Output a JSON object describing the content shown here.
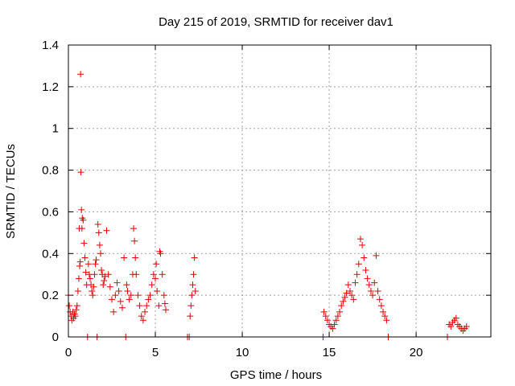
{
  "chart_data": {
    "type": "scatter",
    "title": "Day 215 of 2019, SRMTID for receiver dav1",
    "xlabel": "GPS time / hours",
    "ylabel": "SRMTID / TECUs",
    "xlim": [
      0,
      24.3
    ],
    "ylim": [
      0,
      1.4
    ],
    "grid": true,
    "x_ticks": [
      0,
      5,
      10,
      15,
      20
    ],
    "x_tick_labels": [
      "0",
      "5",
      "10",
      "15",
      "20"
    ],
    "y_ticks": [
      0,
      0.2,
      0.4,
      0.6,
      0.8,
      1.0,
      1.2,
      1.4
    ],
    "y_tick_labels": [
      "0",
      "0.2",
      "0.4",
      "0.6",
      "0.8",
      "1",
      "1.2",
      "1.4"
    ],
    "marker": "+",
    "series": [
      {
        "name": "SRMTID",
        "color": "#e00000",
        "points": [
          [
            0.0,
            0.2
          ],
          [
            0.05,
            0.15
          ],
          [
            0.1,
            0.12
          ],
          [
            0.15,
            0.1
          ],
          [
            0.2,
            0.08
          ],
          [
            0.25,
            0.12
          ],
          [
            0.3,
            0.09
          ],
          [
            0.35,
            0.11
          ],
          [
            0.4,
            0.1
          ],
          [
            0.45,
            0.13
          ],
          [
            0.5,
            0.15
          ],
          [
            0.55,
            0.22
          ],
          [
            0.6,
            0.28
          ],
          [
            0.62,
            0.52
          ],
          [
            0.65,
            0.34
          ],
          [
            0.68,
            0.36
          ],
          [
            0.7,
            1.26
          ],
          [
            0.72,
            0.79
          ],
          [
            0.75,
            0.61
          ],
          [
            0.78,
            0.52
          ],
          [
            0.8,
            0.57
          ],
          [
            0.85,
            0.56
          ],
          [
            0.9,
            0.45
          ],
          [
            0.95,
            0.38
          ],
          [
            1.0,
            0.31
          ],
          [
            1.05,
            0.25
          ],
          [
            1.1,
            0.0
          ],
          [
            1.15,
            0.35
          ],
          [
            1.2,
            0.3
          ],
          [
            1.25,
            0.28
          ],
          [
            1.3,
            0.25
          ],
          [
            1.35,
            0.22
          ],
          [
            1.4,
            0.2
          ],
          [
            1.45,
            0.24
          ],
          [
            1.5,
            0.3
          ],
          [
            1.55,
            0.35
          ],
          [
            1.6,
            0.37
          ],
          [
            1.65,
            0.0
          ],
          [
            1.7,
            0.54
          ],
          [
            1.75,
            0.5
          ],
          [
            1.8,
            0.44
          ],
          [
            1.85,
            0.4
          ],
          [
            1.9,
            0.32
          ],
          [
            1.95,
            0.3
          ],
          [
            2.0,
            0.25
          ],
          [
            2.05,
            0.27
          ],
          [
            2.1,
            0.29
          ],
          [
            2.2,
            0.51
          ],
          [
            2.3,
            0.3
          ],
          [
            2.4,
            0.24
          ],
          [
            2.5,
            0.18
          ],
          [
            2.6,
            0.12
          ],
          [
            2.7,
            0.2
          ],
          [
            2.8,
            0.26
          ],
          [
            2.9,
            0.22
          ],
          [
            3.0,
            0.17
          ],
          [
            3.1,
            0.14
          ],
          [
            3.2,
            0.38
          ],
          [
            3.3,
            0.0
          ],
          [
            3.35,
            0.25
          ],
          [
            3.4,
            0.22
          ],
          [
            3.5,
            0.18
          ],
          [
            3.6,
            0.2
          ],
          [
            3.7,
            0.3
          ],
          [
            3.75,
            0.52
          ],
          [
            3.8,
            0.46
          ],
          [
            3.85,
            0.38
          ],
          [
            3.9,
            0.3
          ],
          [
            4.0,
            0.2
          ],
          [
            4.1,
            0.15
          ],
          [
            4.2,
            0.1
          ],
          [
            4.3,
            0.08
          ],
          [
            4.4,
            0.12
          ],
          [
            4.5,
            0.15
          ],
          [
            4.6,
            0.18
          ],
          [
            4.7,
            0.2
          ],
          [
            4.8,
            0.25
          ],
          [
            4.9,
            0.3
          ],
          [
            5.0,
            0.28
          ],
          [
            5.05,
            0.35
          ],
          [
            5.1,
            0.22
          ],
          [
            5.2,
            0.15
          ],
          [
            5.25,
            0.41
          ],
          [
            5.3,
            0.4
          ],
          [
            5.4,
            0.3
          ],
          [
            5.5,
            0.2
          ],
          [
            5.55,
            0.16
          ],
          [
            5.6,
            0.13
          ],
          [
            6.85,
            0.0
          ],
          [
            6.95,
            0.0
          ],
          [
            7.0,
            0.1
          ],
          [
            7.05,
            0.15
          ],
          [
            7.1,
            0.2
          ],
          [
            7.15,
            0.25
          ],
          [
            7.2,
            0.3
          ],
          [
            7.25,
            0.38
          ],
          [
            7.3,
            0.22
          ],
          [
            14.65,
            0.0
          ],
          [
            14.7,
            0.12
          ],
          [
            14.8,
            0.1
          ],
          [
            14.9,
            0.08
          ],
          [
            15.0,
            0.06
          ],
          [
            15.1,
            0.05
          ],
          [
            15.2,
            0.04
          ],
          [
            15.3,
            0.06
          ],
          [
            15.4,
            0.08
          ],
          [
            15.5,
            0.1
          ],
          [
            15.6,
            0.12
          ],
          [
            15.7,
            0.15
          ],
          [
            15.8,
            0.17
          ],
          [
            15.9,
            0.19
          ],
          [
            16.0,
            0.21
          ],
          [
            16.1,
            0.25
          ],
          [
            16.2,
            0.22
          ],
          [
            16.3,
            0.2
          ],
          [
            16.4,
            0.18
          ],
          [
            16.5,
            0.26
          ],
          [
            16.6,
            0.3
          ],
          [
            16.7,
            0.35
          ],
          [
            16.8,
            0.47
          ],
          [
            16.9,
            0.44
          ],
          [
            17.0,
            0.38
          ],
          [
            17.1,
            0.32
          ],
          [
            17.2,
            0.28
          ],
          [
            17.3,
            0.25
          ],
          [
            17.4,
            0.22
          ],
          [
            17.5,
            0.2
          ],
          [
            17.6,
            0.26
          ],
          [
            17.7,
            0.39
          ],
          [
            17.8,
            0.22
          ],
          [
            17.9,
            0.18
          ],
          [
            18.0,
            0.15
          ],
          [
            18.1,
            0.12
          ],
          [
            18.2,
            0.1
          ],
          [
            18.3,
            0.08
          ],
          [
            18.4,
            0.0
          ],
          [
            21.8,
            0.0
          ],
          [
            21.9,
            0.06
          ],
          [
            22.0,
            0.05
          ],
          [
            22.1,
            0.07
          ],
          [
            22.2,
            0.08
          ],
          [
            22.3,
            0.09
          ],
          [
            22.4,
            0.06
          ],
          [
            22.5,
            0.05
          ],
          [
            22.6,
            0.04
          ],
          [
            22.7,
            0.03
          ],
          [
            22.8,
            0.04
          ],
          [
            22.9,
            0.05
          ]
        ]
      }
    ]
  }
}
